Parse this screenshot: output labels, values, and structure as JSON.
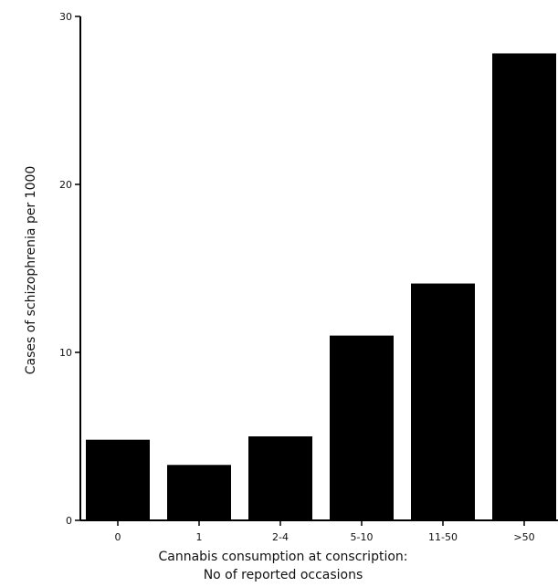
{
  "chart_data": {
    "type": "bar",
    "title": "",
    "xlabel": [
      "Cannabis consumption at conscription:",
      "No of reported occasions"
    ],
    "ylabel": "Cases of schizophrenia per 1000",
    "categories": [
      "0",
      "1",
      "2-4",
      "5-10",
      "11-50",
      ">50"
    ],
    "values": [
      4.8,
      3.3,
      5.0,
      11.0,
      14.1,
      27.8
    ],
    "ylim": [
      0,
      30
    ],
    "yticks": [
      "0",
      "10",
      "20",
      "30"
    ],
    "grid": false,
    "bar_color": "#000000"
  }
}
